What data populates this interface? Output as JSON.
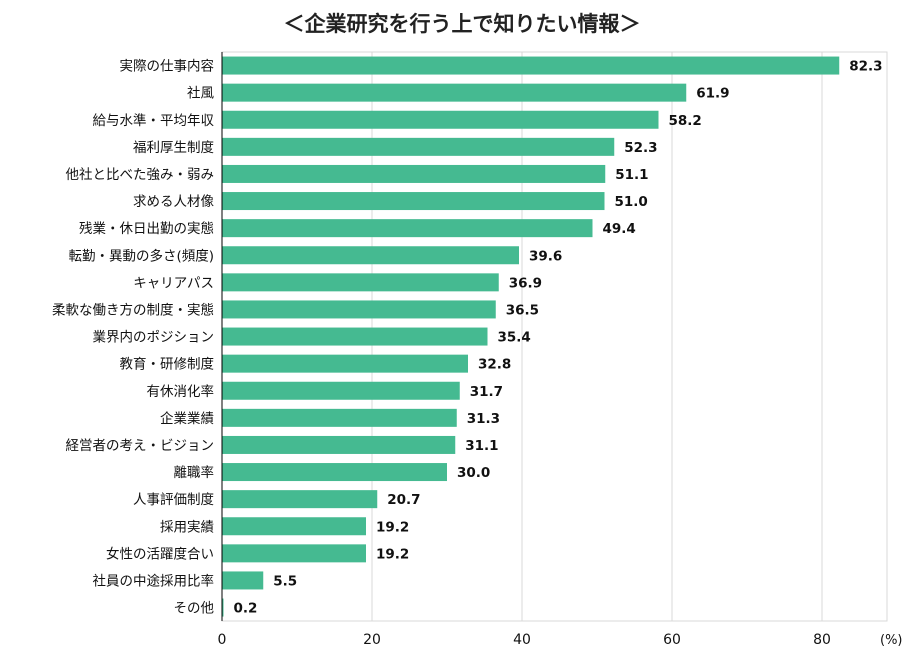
{
  "chart_data": {
    "type": "bar",
    "orientation": "horizontal",
    "title": "＜企業研究を行う上で知りたい情報＞",
    "unit": "(%)",
    "bar_color": "#45BA91",
    "xlim": [
      0,
      90
    ],
    "xticks": [
      0,
      20,
      40,
      60,
      80
    ],
    "grid": true,
    "categories": [
      "実際の仕事内容",
      "社風",
      "給与水準・平均年収",
      "福利厚生制度",
      "他社と比べた強み・弱み",
      "求める人材像",
      "残業・休日出勤の実態",
      "転勤・異動の多さ(頻度)",
      "キャリアパス",
      "柔軟な働き方の制度・実態",
      "業界内のポジション",
      "教育・研修制度",
      "有休消化率",
      "企業業績",
      "経営者の考え・ビジョン",
      "離職率",
      "人事評価制度",
      "採用実績",
      "女性の活躍度合い",
      "社員の中途採用比率",
      "その他"
    ],
    "values": [
      82.3,
      61.9,
      58.2,
      52.3,
      51.1,
      51.0,
      49.4,
      39.6,
      36.9,
      36.5,
      35.4,
      32.8,
      31.7,
      31.3,
      31.1,
      30.0,
      20.7,
      19.2,
      19.2,
      5.5,
      0.2
    ],
    "value_labels": [
      "82.3",
      "61.9",
      "58.2",
      "52.3",
      "51.1",
      "51.0",
      "49.4",
      "39.6",
      "36.9",
      "36.5",
      "35.4",
      "32.8",
      "31.7",
      "31.3",
      "31.1",
      "30.0",
      "20.7",
      "19.2",
      "19.2",
      "5.5",
      "0.2"
    ]
  }
}
